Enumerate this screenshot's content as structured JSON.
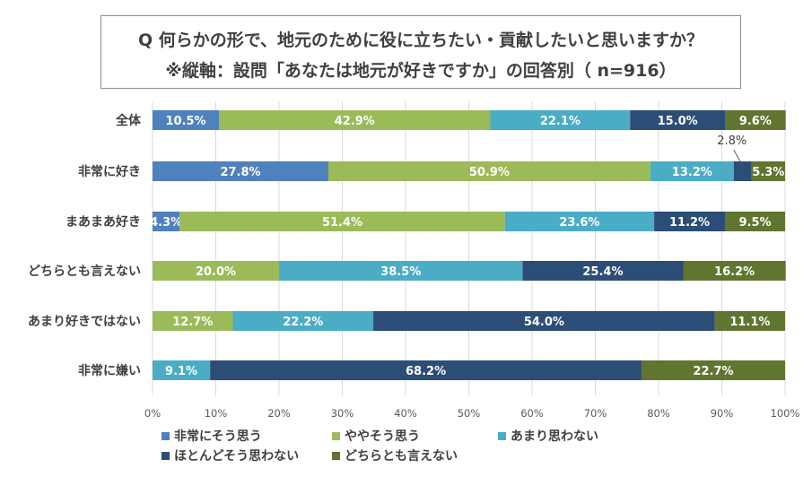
{
  "chart_data": {
    "type": "bar",
    "orientation": "horizontal",
    "stacked": true,
    "title": "Q 何らかの形で、地元のために役に立ちたい・貢献したいと思いますか？",
    "subtitle": "※縦軸：設問「あなたは地元が好きですか」の回答別（ n=916）",
    "categories": [
      "全体",
      "非常に好き",
      "まあまあ好き",
      "どちらとも言えない",
      "あまり好きではない",
      "非常に嫌い"
    ],
    "series": [
      {
        "name": "非常にそう思う",
        "color": "#4f81bd",
        "values": [
          10.5,
          27.8,
          4.3,
          0,
          0,
          0
        ]
      },
      {
        "name": "ややそう思う",
        "color": "#9bbb59",
        "values": [
          42.9,
          50.9,
          51.4,
          20.0,
          12.7,
          0
        ]
      },
      {
        "name": "あまり思わない",
        "color": "#4bacc6",
        "values": [
          22.1,
          13.2,
          23.6,
          38.5,
          22.2,
          9.1
        ]
      },
      {
        "name": "ほとんどそう思わない",
        "color": "#2c4d75",
        "values": [
          15.0,
          2.8,
          11.2,
          25.4,
          54.0,
          68.2
        ]
      },
      {
        "name": "どちらとも言えない",
        "color": "#5f7530",
        "values": [
          9.6,
          5.3,
          9.5,
          16.2,
          11.1,
          22.7
        ]
      }
    ],
    "xlim": [
      0,
      100
    ],
    "xticks": [
      "0%",
      "10%",
      "20%",
      "30%",
      "40%",
      "50%",
      "60%",
      "70%",
      "80%",
      "90%",
      "100%"
    ],
    "value_format": "%",
    "callouts": [
      {
        "category": "非常に好き",
        "series": "ほとんどそう思わない",
        "text": "2.8%"
      }
    ],
    "legend_position": "bottom",
    "grid": true
  }
}
